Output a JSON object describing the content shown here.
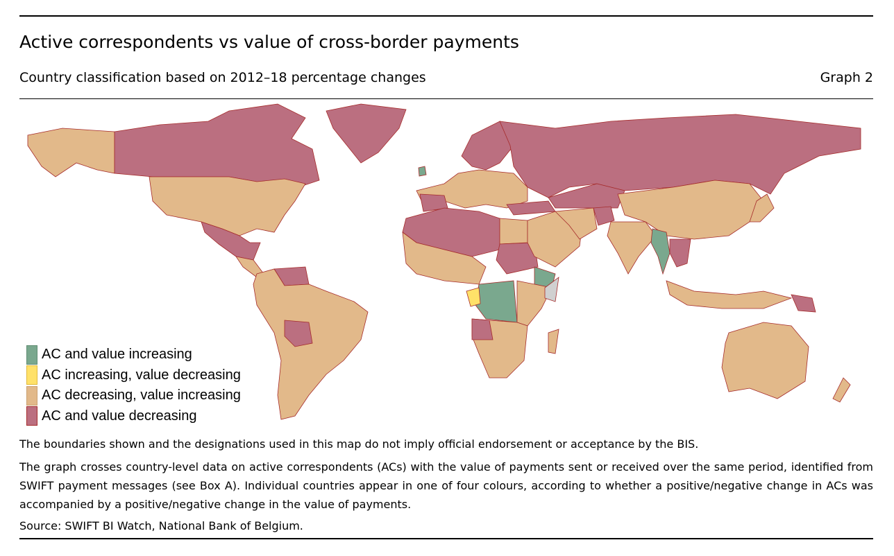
{
  "header": {
    "title": "Active correspondents vs value of cross-border payments",
    "subtitle": "Country classification based on 2012–18 percentage changes",
    "graph_label": "Graph 2"
  },
  "map": {
    "categories": [
      {
        "key": "both_up",
        "label": "AC and value increasing",
        "color": "#7aa88e"
      },
      {
        "key": "ac_up_val_down",
        "label": "AC increasing, value decreasing",
        "color": "#ffe169"
      },
      {
        "key": "ac_down_val_up",
        "label": "AC decreasing, value increasing",
        "color": "#e2b98a"
      },
      {
        "key": "both_down",
        "label": "AC and value decreasing",
        "color": "#bb6f80"
      }
    ],
    "no_data_color": "#d0d0d0",
    "border_color": "#a52a2a"
  },
  "notes": {
    "disclaimer": "The boundaries shown and the designations used in this map do not imply official endorsement or acceptance by the BIS.",
    "description": "The graph crosses country-level data on active correspondents (ACs) with the value of payments sent or received over the same period, identified from SWIFT payment messages (see Box A). Individual countries appear in one of four colours, according to whether a positive/negative change in ACs was accompanied by a positive/negative change in the value of payments.",
    "source": "Source: SWIFT BI Watch, National Bank of Belgium."
  }
}
